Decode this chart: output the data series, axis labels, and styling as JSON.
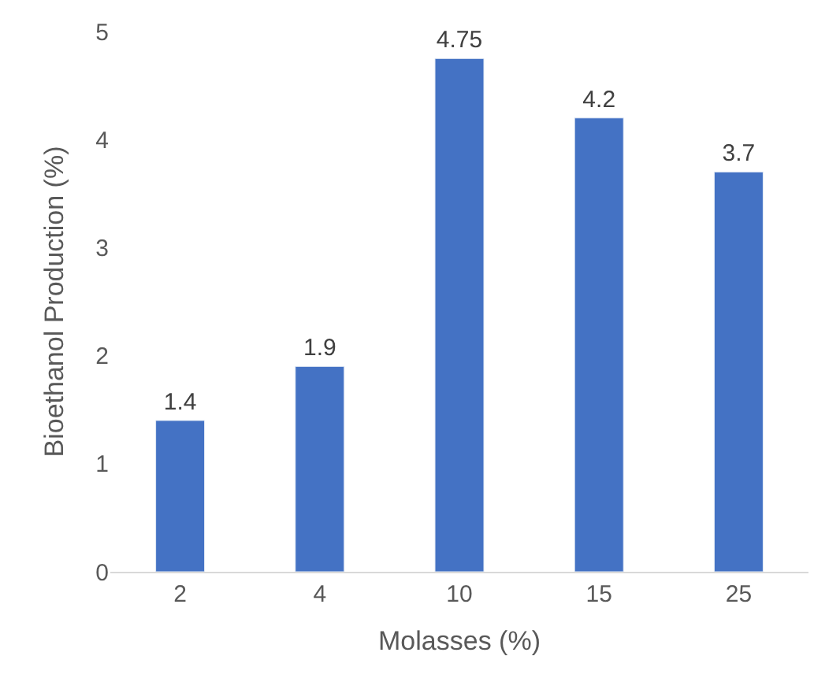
{
  "chart_data": {
    "type": "bar",
    "xlabel": "Molasses (%)",
    "ylabel": "Bioethanol Production (%)",
    "categories": [
      "2",
      "4",
      "10",
      "15",
      "25"
    ],
    "values": [
      1.4,
      1.9,
      4.75,
      4.2,
      3.7
    ],
    "color": "#4472c4",
    "data_labels": true,
    "ylim": [
      0,
      5
    ],
    "yticks": [
      0,
      1,
      2,
      3,
      4,
      5
    ]
  }
}
